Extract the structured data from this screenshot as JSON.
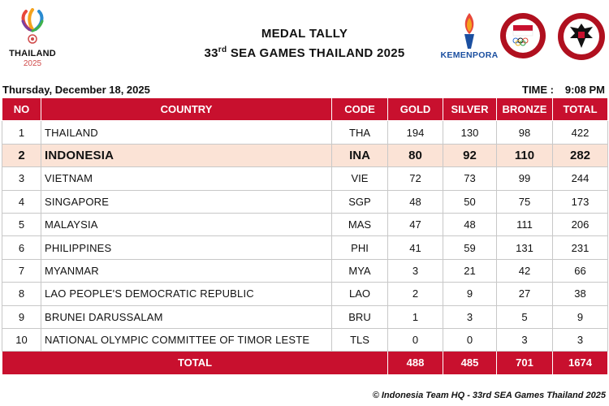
{
  "header": {
    "logo_word": "THAILAND",
    "logo_year": "2025",
    "title_line1": "MEDAL TALLY",
    "title_prefix": "33",
    "title_sup": "rd",
    "title_suffix": " SEA GAMES THAILAND 2025",
    "kemenpora_label": "KEMENPORA"
  },
  "meta": {
    "date": "Thursday, December 18, 2025",
    "time_label": "TIME :",
    "time_value": "9:08 PM"
  },
  "table": {
    "columns": [
      "NO",
      "COUNTRY",
      "CODE",
      "GOLD",
      "SILVER",
      "BRONZE",
      "TOTAL"
    ],
    "rows": [
      {
        "no": "1",
        "country": "THAILAND",
        "code": "THA",
        "gold": "194",
        "silver": "130",
        "bronze": "98",
        "total": "422"
      },
      {
        "no": "2",
        "country": "INDONESIA",
        "code": "INA",
        "gold": "80",
        "silver": "92",
        "bronze": "110",
        "total": "282"
      },
      {
        "no": "3",
        "country": "VIETNAM",
        "code": "VIE",
        "gold": "72",
        "silver": "73",
        "bronze": "99",
        "total": "244"
      },
      {
        "no": "4",
        "country": "SINGAPORE",
        "code": "SGP",
        "gold": "48",
        "silver": "50",
        "bronze": "75",
        "total": "173"
      },
      {
        "no": "5",
        "country": "MALAYSIA",
        "code": "MAS",
        "gold": "47",
        "silver": "48",
        "bronze": "111",
        "total": "206"
      },
      {
        "no": "6",
        "country": "PHILIPPINES",
        "code": "PHI",
        "gold": "41",
        "silver": "59",
        "bronze": "131",
        "total": "231"
      },
      {
        "no": "7",
        "country": "MYANMAR",
        "code": "MYA",
        "gold": "3",
        "silver": "21",
        "bronze": "42",
        "total": "66"
      },
      {
        "no": "8",
        "country": "LAO PEOPLE'S DEMOCRATIC REPUBLIC",
        "code": "LAO",
        "gold": "2",
        "silver": "9",
        "bronze": "27",
        "total": "38"
      },
      {
        "no": "9",
        "country": "BRUNEI DARUSSALAM",
        "code": "BRU",
        "gold": "1",
        "silver": "3",
        "bronze": "5",
        "total": "9"
      },
      {
        "no": "10",
        "country": "NATIONAL OLYMPIC COMMITTEE OF TIMOR LESTE",
        "code": "TLS",
        "gold": "0",
        "silver": "0",
        "bronze": "3",
        "total": "3"
      }
    ],
    "totals": {
      "label": "TOTAL",
      "gold": "488",
      "silver": "485",
      "bronze": "701",
      "total": "1674"
    }
  },
  "footer": {
    "credit": "© Indonesia Team HQ - 33rd SEA Games Thailand 2025"
  },
  "colors": {
    "header_red": "#c8102e",
    "highlight_row": "#fbe3d6",
    "kemenpora_blue": "#1b4fa0"
  },
  "icons": [
    "sea-games-2025-logo",
    "kemenpora-torch-logo",
    "komite-olimpiade-indonesia-logo",
    "garuda-emblem"
  ]
}
